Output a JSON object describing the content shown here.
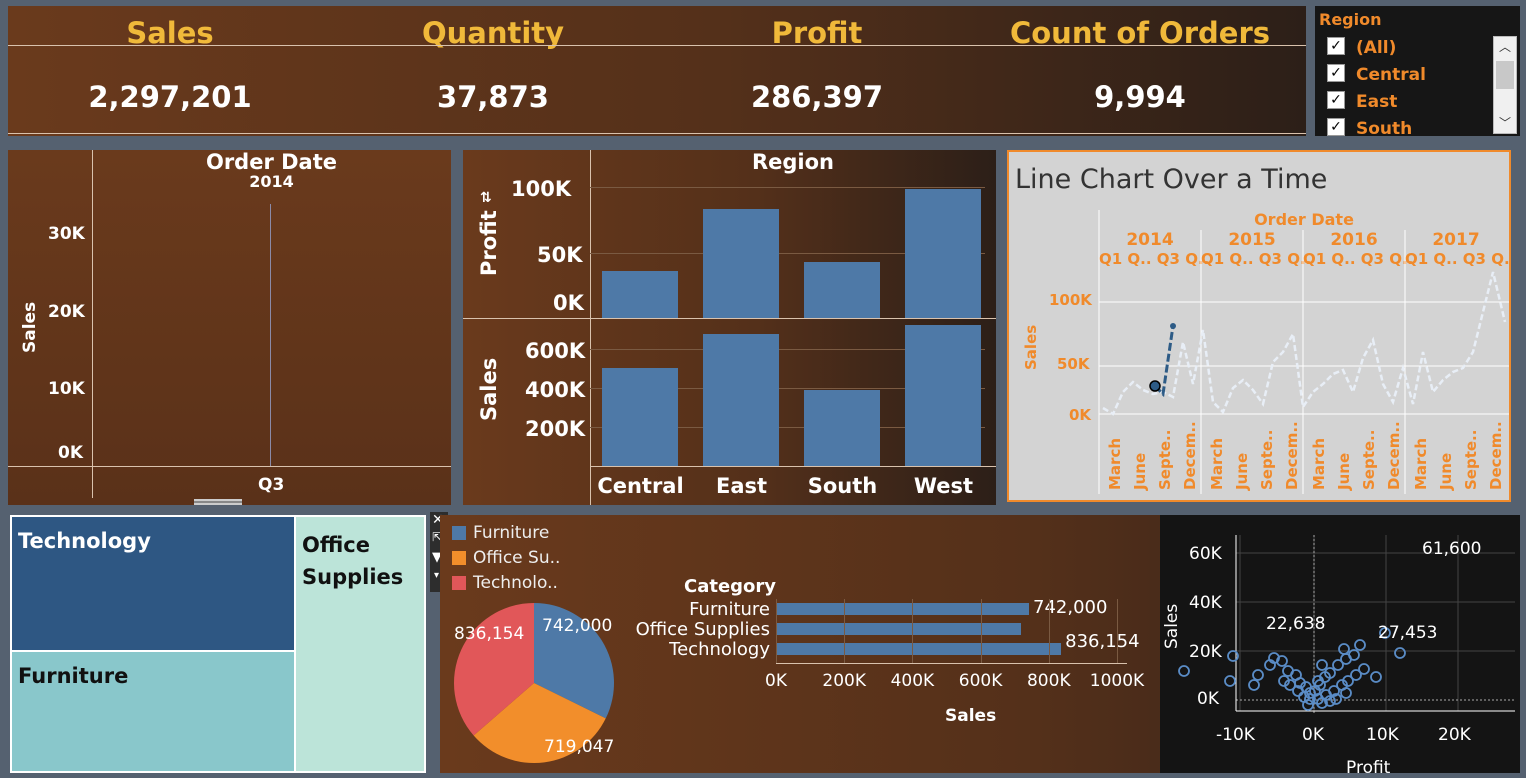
{
  "kpis": [
    {
      "label": "Sales",
      "value": "2,297,201"
    },
    {
      "label": "Quantity",
      "value": "37,873"
    },
    {
      "label": "Profit",
      "value": "286,397"
    },
    {
      "label": "Count of Orders",
      "value": "9,994"
    }
  ],
  "region_filter": {
    "title": "Region",
    "items": [
      "(All)",
      "Central",
      "East",
      "South"
    ]
  },
  "order_date_chart": {
    "header": "Order Date",
    "year": "2014",
    "ylabel": "Sales",
    "yticks": [
      "30K",
      "20K",
      "10K",
      "0K"
    ],
    "xtick": "Q3"
  },
  "region_chart": {
    "header": "Region",
    "profit_label": "Profit",
    "sales_label": "Sales",
    "profit_ticks": [
      "100K",
      "50K",
      "0K"
    ],
    "sales_ticks": [
      "600K",
      "400K",
      "200K"
    ],
    "regions": [
      "Central",
      "East",
      "South",
      "West"
    ]
  },
  "line_chart": {
    "title": "Line Chart Over a Time",
    "header": "Order Date",
    "years": [
      "2014",
      "2015",
      "2016",
      "2017"
    ],
    "quarters": "Q1 Q.. Q3 Q..",
    "ylabel": "Sales",
    "yticks": [
      "100K",
      "50K",
      "0K"
    ],
    "months": [
      "March",
      "June",
      "Septe..",
      "Decem.."
    ]
  },
  "treemap": {
    "items": [
      "Technology",
      "Office Supplies",
      "Furniture"
    ]
  },
  "pie": {
    "legend": [
      "Furniture",
      "Office Su..",
      "Technolo.."
    ],
    "labels": [
      "742,000",
      "719,047",
      "836,154"
    ]
  },
  "hbar": {
    "header": "Category",
    "xlabel": "Sales",
    "xticks": [
      "0K",
      "200K",
      "400K",
      "600K",
      "800K",
      "1000K"
    ],
    "value_labels": [
      "742,000",
      "836,154"
    ]
  },
  "scatter": {
    "xlabel": "Profit",
    "ylabel": "Sales",
    "xticks": [
      "-10K",
      "0K",
      "10K",
      "20K"
    ],
    "yticks": [
      "60K",
      "40K",
      "20K",
      "0K"
    ],
    "labels": [
      "61,600",
      "22,638",
      "27,453"
    ]
  },
  "colors": {
    "furniture": "#4e79a7",
    "office": "#f28e2b",
    "technology": "#e15759",
    "kpi_label": "#f0b93a",
    "accent_orange": "#f08a2b"
  },
  "chart_data": [
    {
      "type": "bar",
      "title": "Region",
      "categories": [
        "Central",
        "East",
        "South",
        "West"
      ],
      "series": [
        {
          "name": "Profit",
          "values": [
            39706,
            91523,
            46749,
            108418
          ]
        },
        {
          "name": "Sales",
          "values": [
            501240,
            678781,
            391722,
            725458
          ]
        }
      ]
    },
    {
      "type": "pie",
      "categories": [
        "Furniture",
        "Office Supplies",
        "Technology"
      ],
      "values": [
        742000,
        719047,
        836154
      ]
    },
    {
      "type": "bar",
      "ylabel": "Category",
      "xlabel": "Sales",
      "categories": [
        "Furniture",
        "Office Supplies",
        "Technology"
      ],
      "values": [
        742000,
        719047,
        836154
      ],
      "xlim": [
        0,
        1000000
      ]
    }
  ]
}
